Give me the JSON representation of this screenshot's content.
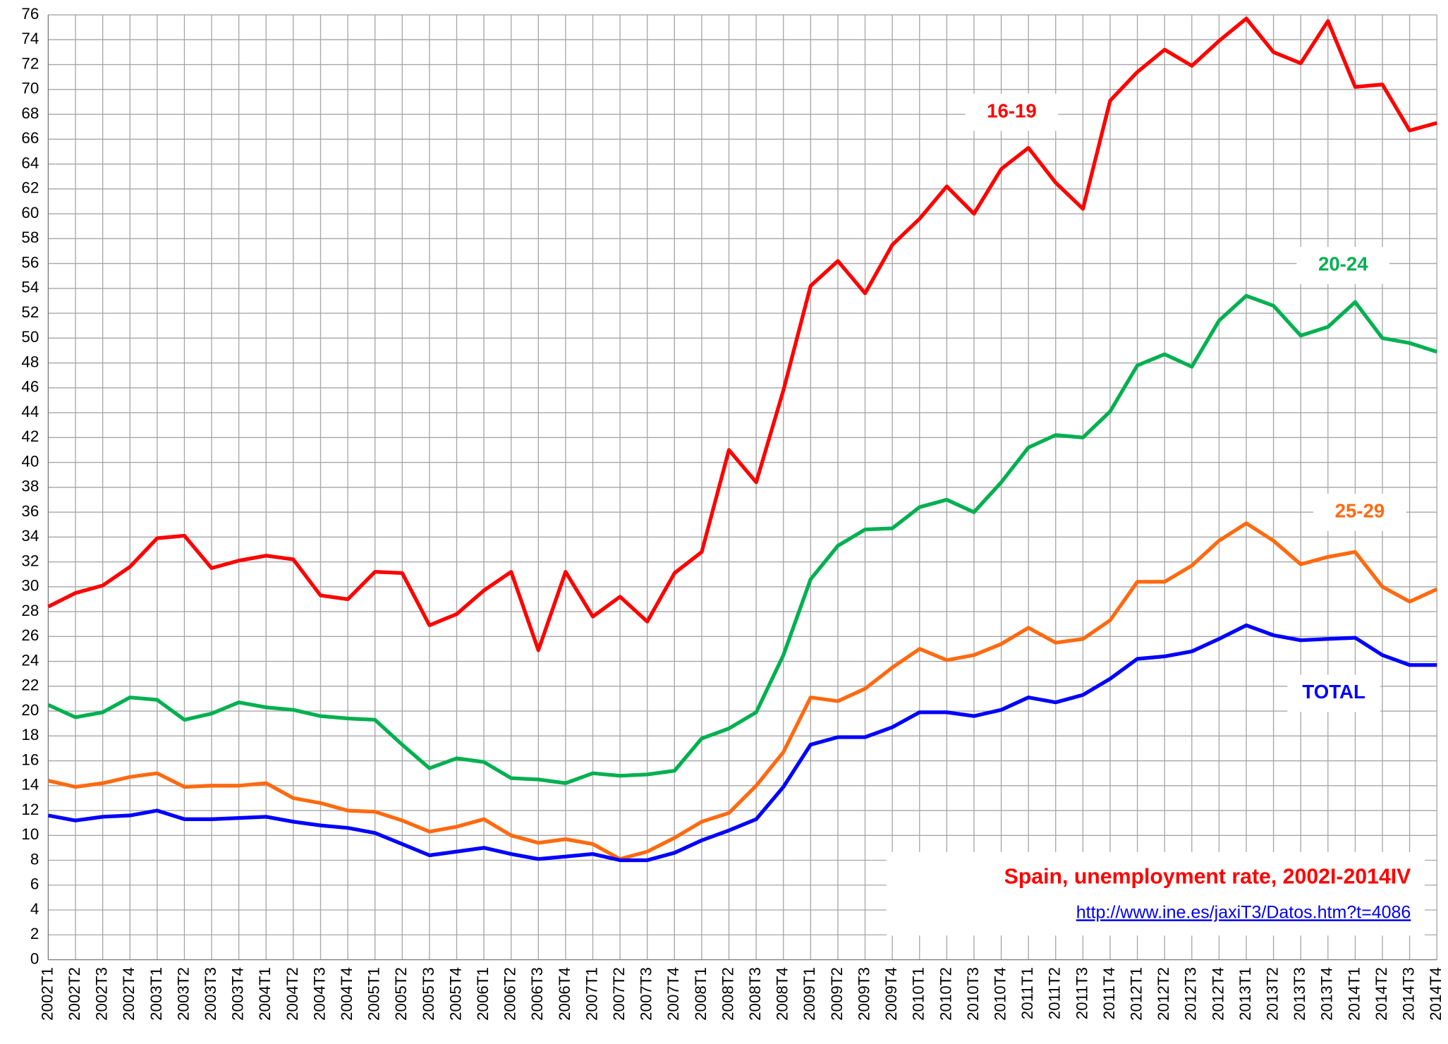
{
  "chart_data": {
    "type": "line",
    "title": "Spain, unemployment rate, 2002I-2014IV",
    "subtitle": "http://www.ine.es/jaxiT3/Datos.htm?t=4086",
    "categories": [
      "2002T1",
      "2002T2",
      "2002T3",
      "2002T4",
      "2003T1",
      "2003T2",
      "2003T3",
      "2003T4",
      "2004T1",
      "2004T2",
      "2004T3",
      "2004T4",
      "2005T1",
      "2005T2",
      "2005T3",
      "2005T4",
      "2006T1",
      "2006T2",
      "2006T3",
      "2006T4",
      "2007T1",
      "2007T2",
      "2007T3",
      "2007T4",
      "2008T1",
      "2008T2",
      "2008T3",
      "2008T4",
      "2009T1",
      "2009T2",
      "2009T3",
      "2009T4",
      "2010T1",
      "2010T2",
      "2010T3",
      "2010T4",
      "2011T1",
      "2011T2",
      "2011T3",
      "2011T4",
      "2012T1",
      "2012T2",
      "2012T3",
      "2012T4",
      "2013T1",
      "2013T2",
      "2013T3",
      "2013T4",
      "2014T1",
      "2014T2",
      "2014T3",
      "2014T4"
    ],
    "series": [
      {
        "name": "16-19",
        "color": "#ff0000",
        "values": [
          28.4,
          29.5,
          30.1,
          31.6,
          33.9,
          34.1,
          31.5,
          32.1,
          32.5,
          32.2,
          29.3,
          29.0,
          31.2,
          31.1,
          26.9,
          27.8,
          29.7,
          31.2,
          24.9,
          31.2,
          27.6,
          29.2,
          27.2,
          31.1,
          32.8,
          41.0,
          38.4,
          45.8,
          54.2,
          56.2,
          53.6,
          57.5,
          59.6,
          62.2,
          60.0,
          63.6,
          65.3,
          62.5,
          60.4,
          69.1,
          71.4,
          73.2,
          71.9,
          73.9,
          75.7,
          73.0,
          72.1,
          75.5,
          70.2,
          70.4,
          66.7,
          67.3
        ]
      },
      {
        "name": "20-24",
        "color": "#00b050",
        "values": [
          20.5,
          19.5,
          19.9,
          21.1,
          20.9,
          19.3,
          19.8,
          20.7,
          20.3,
          20.1,
          19.6,
          19.4,
          19.3,
          17.3,
          15.4,
          16.2,
          15.9,
          14.6,
          14.5,
          14.2,
          15.0,
          14.8,
          14.9,
          15.2,
          17.8,
          18.6,
          19.9,
          24.5,
          30.6,
          33.3,
          34.6,
          34.7,
          36.4,
          37.0,
          36.0,
          38.4,
          41.2,
          42.2,
          42.0,
          44.1,
          47.8,
          48.7,
          47.7,
          51.4,
          53.4,
          52.6,
          50.2,
          50.9,
          52.9,
          50.0,
          49.6,
          48.9
        ]
      },
      {
        "name": "25-29",
        "color": "#ff6a10",
        "values": [
          14.4,
          13.9,
          14.2,
          14.7,
          15.0,
          13.9,
          14.0,
          14.0,
          14.2,
          13.0,
          12.6,
          12.0,
          11.9,
          11.2,
          10.3,
          10.7,
          11.3,
          10.0,
          9.4,
          9.7,
          9.3,
          8.1,
          8.7,
          9.8,
          11.1,
          11.8,
          14.0,
          16.7,
          21.1,
          20.8,
          21.8,
          23.5,
          25.0,
          24.1,
          24.5,
          25.4,
          26.7,
          25.5,
          25.8,
          27.3,
          30.4,
          30.4,
          31.7,
          33.7,
          35.1,
          33.7,
          31.8,
          32.4,
          32.8,
          30.0,
          28.8,
          29.8
        ]
      },
      {
        "name": "TOTAL",
        "color": "#0000ff",
        "values": [
          11.6,
          11.2,
          11.5,
          11.6,
          12.0,
          11.3,
          11.3,
          11.4,
          11.5,
          11.1,
          10.8,
          10.6,
          10.2,
          9.3,
          8.4,
          8.7,
          9.0,
          8.5,
          8.1,
          8.3,
          8.5,
          8.0,
          8.0,
          8.6,
          9.6,
          10.4,
          11.3,
          13.9,
          17.3,
          17.9,
          17.9,
          18.7,
          19.9,
          19.9,
          19.6,
          20.1,
          21.1,
          20.7,
          21.3,
          22.6,
          24.2,
          24.4,
          24.8,
          25.8,
          26.9,
          26.1,
          25.7,
          25.8,
          25.9,
          24.5,
          23.7,
          23.7
        ]
      }
    ],
    "ylim": [
      0,
      76
    ],
    "yticks": [
      0,
      2,
      4,
      6,
      8,
      10,
      12,
      14,
      16,
      18,
      20,
      22,
      24,
      26,
      28,
      30,
      32,
      34,
      36,
      38,
      40,
      42,
      44,
      46,
      48,
      50,
      52,
      54,
      56,
      58,
      60,
      62,
      64,
      66,
      68,
      70,
      72,
      74,
      76
    ],
    "grid": true
  }
}
